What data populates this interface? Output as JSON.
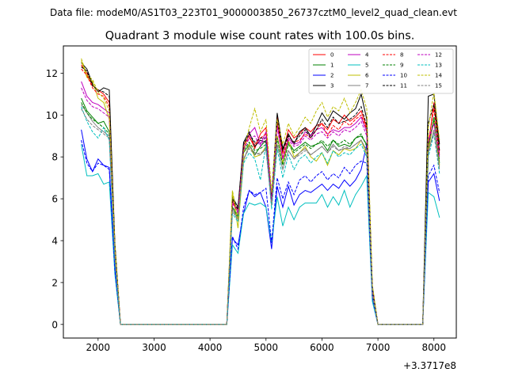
{
  "figure": {
    "suptitle": "Data file: modeM0/AS1T03_223T01_9000003850_26737cztM0_level2_quad_clean.evt",
    "offset_label": "+3.3717e8"
  },
  "chart_data": {
    "type": "line",
    "title": "Quadrant 3 module wise count rates with 100.0s bins.",
    "xlabel": "",
    "ylabel": "",
    "x_offset": 337170000,
    "xlim": [
      1380,
      8400
    ],
    "ylim": [
      -0.65,
      13.3
    ],
    "xticks": [
      2000,
      3000,
      4000,
      5000,
      6000,
      7000,
      8000
    ],
    "xtick_labels": [
      "2000",
      "3000",
      "4000",
      "5000",
      "6000",
      "7000",
      "8000"
    ],
    "yticks": [
      0,
      2,
      4,
      6,
      8,
      10,
      12
    ],
    "ytick_labels": [
      "0",
      "2",
      "4",
      "6",
      "8",
      "10",
      "12"
    ],
    "grid": false,
    "legend_position": "top-right",
    "legend_columns": 4,
    "x": [
      1700,
      1800,
      1900,
      2000,
      2100,
      2200,
      2300,
      2400,
      2500,
      2600,
      2700,
      2800,
      2900,
      3000,
      3100,
      3200,
      3300,
      3400,
      3500,
      3600,
      3700,
      3800,
      3900,
      4000,
      4100,
      4200,
      4300,
      4400,
      4500,
      4600,
      4700,
      4800,
      4900,
      5000,
      5100,
      5200,
      5300,
      5400,
      5500,
      5600,
      5700,
      5800,
      5900,
      6000,
      6100,
      6200,
      6300,
      6400,
      6500,
      6600,
      6700,
      6800,
      6900,
      7000,
      7100,
      7200,
      7300,
      7400,
      7500,
      7600,
      7700,
      7800,
      7900,
      8000,
      8100
    ],
    "series": [
      {
        "name": "0",
        "color": "#ff0000",
        "dash": "solid",
        "values": [
          12.4,
          12.0,
          11.4,
          11.2,
          11.0,
          10.6,
          3.8,
          0,
          0,
          0,
          0,
          0,
          0,
          0,
          0,
          0,
          0,
          0,
          0,
          0,
          0,
          0,
          0,
          0,
          0,
          0,
          0,
          5.8,
          5.5,
          8.6,
          9.0,
          8.4,
          9.1,
          9.4,
          6.0,
          9.9,
          8.2,
          9.3,
          8.9,
          9.1,
          9.4,
          9.2,
          9.5,
          9.6,
          9.3,
          9.8,
          9.6,
          10.0,
          9.7,
          9.9,
          10.2,
          9.4,
          1.7,
          0,
          0,
          0,
          0,
          0,
          0,
          0,
          0,
          0,
          8.5,
          10.6,
          8.3
        ]
      },
      {
        "name": "1",
        "color": "#008000",
        "dash": "solid",
        "values": [
          10.8,
          10.2,
          9.9,
          9.6,
          9.7,
          9.2,
          3.4,
          0,
          0,
          0,
          0,
          0,
          0,
          0,
          0,
          0,
          0,
          0,
          0,
          0,
          0,
          0,
          0,
          0,
          0,
          0,
          0,
          5.6,
          5.2,
          8.2,
          8.6,
          8.1,
          8.5,
          8.8,
          6.0,
          9.0,
          7.7,
          8.7,
          8.3,
          8.5,
          8.7,
          8.5,
          8.6,
          8.7,
          8.3,
          8.8,
          8.5,
          8.6,
          8.5,
          8.9,
          9.0,
          8.6,
          1.5,
          0,
          0,
          0,
          0,
          0,
          0,
          0,
          0,
          0,
          8.4,
          9.9,
          7.7
        ]
      },
      {
        "name": "2",
        "color": "#0000ff",
        "dash": "solid",
        "values": [
          9.3,
          7.9,
          7.3,
          7.9,
          7.6,
          7.5,
          2.7,
          0,
          0,
          0,
          0,
          0,
          0,
          0,
          0,
          0,
          0,
          0,
          0,
          0,
          0,
          0,
          0,
          0,
          0,
          0,
          0,
          4.1,
          3.8,
          5.3,
          6.4,
          6.1,
          6.3,
          5.6,
          3.6,
          6.6,
          5.6,
          6.6,
          5.7,
          6.2,
          6.4,
          6.3,
          6.5,
          6.7,
          6.4,
          6.7,
          6.5,
          6.9,
          6.6,
          6.9,
          7.4,
          8.6,
          1.3,
          0,
          0,
          0,
          0,
          0,
          0,
          0,
          0,
          0,
          6.8,
          7.2,
          5.9
        ]
      },
      {
        "name": "3",
        "color": "#000000",
        "dash": "solid",
        "values": [
          12.5,
          12.2,
          11.5,
          11.1,
          11.3,
          11.2,
          3.9,
          0,
          0,
          0,
          0,
          0,
          0,
          0,
          0,
          0,
          0,
          0,
          0,
          0,
          0,
          0,
          0,
          0,
          0,
          0,
          0,
          6.1,
          5.6,
          8.7,
          9.2,
          8.5,
          8.8,
          8.7,
          6.1,
          10.1,
          8.4,
          9.1,
          8.6,
          9.2,
          9.4,
          9.0,
          9.5,
          10.1,
          9.7,
          10.2,
          10.0,
          9.8,
          10.1,
          10.3,
          11.0,
          9.8,
          1.8,
          0,
          0,
          0,
          0,
          0,
          0,
          0,
          0,
          0,
          10.9,
          11.0,
          8.6
        ]
      },
      {
        "name": "4",
        "color": "#bf00bf",
        "dash": "solid",
        "values": [
          11.6,
          10.9,
          10.6,
          10.5,
          10.3,
          10.1,
          3.6,
          0,
          0,
          0,
          0,
          0,
          0,
          0,
          0,
          0,
          0,
          0,
          0,
          0,
          0,
          0,
          0,
          0,
          0,
          0,
          0,
          5.9,
          5.4,
          8.4,
          9.1,
          9.4,
          8.6,
          9.2,
          5.9,
          9.6,
          7.9,
          8.9,
          8.6,
          8.7,
          9.2,
          9.0,
          9.3,
          9.4,
          9.1,
          9.3,
          9.2,
          9.4,
          9.4,
          9.6,
          9.9,
          9.2,
          1.6,
          0,
          0,
          0,
          0,
          0,
          0,
          0,
          0,
          0,
          8.8,
          9.6,
          8.1
        ]
      },
      {
        "name": "5",
        "color": "#00bfbf",
        "dash": "solid",
        "values": [
          8.6,
          7.1,
          7.1,
          7.2,
          6.7,
          6.8,
          2.4,
          0,
          0,
          0,
          0,
          0,
          0,
          0,
          0,
          0,
          0,
          0,
          0,
          0,
          0,
          0,
          0,
          0,
          0,
          0,
          0,
          3.8,
          3.4,
          5.3,
          5.8,
          5.7,
          5.8,
          5.6,
          3.9,
          6.1,
          4.7,
          5.6,
          5.0,
          5.6,
          5.8,
          5.8,
          5.8,
          6.2,
          5.6,
          6.1,
          5.7,
          6.4,
          5.6,
          6.2,
          6.6,
          7.1,
          1.1,
          0,
          0,
          0,
          0,
          0,
          0,
          0,
          0,
          0,
          6.3,
          6.1,
          5.1
        ]
      },
      {
        "name": "6",
        "color": "#bfbf00",
        "dash": "solid",
        "values": [
          12.6,
          11.8,
          11.6,
          10.8,
          10.6,
          9.8,
          3.7,
          0,
          0,
          0,
          0,
          0,
          0,
          0,
          0,
          0,
          0,
          0,
          0,
          0,
          0,
          0,
          0,
          0,
          0,
          0,
          0,
          6.3,
          4.6,
          7.8,
          8.6,
          8.0,
          8.1,
          8.5,
          5.8,
          9.0,
          7.7,
          8.8,
          8.0,
          8.2,
          8.5,
          8.0,
          7.8,
          8.2,
          7.6,
          8.3,
          8.1,
          8.4,
          8.3,
          8.4,
          8.8,
          8.1,
          1.5,
          0,
          0,
          0,
          0,
          0,
          0,
          0,
          0,
          0,
          8.3,
          9.8,
          7.6
        ]
      },
      {
        "name": "7",
        "color": "#808080",
        "dash": "solid",
        "values": [
          10.5,
          10.1,
          9.7,
          9.4,
          9.2,
          9.0,
          3.2,
          0,
          0,
          0,
          0,
          0,
          0,
          0,
          0,
          0,
          0,
          0,
          0,
          0,
          0,
          0,
          0,
          0,
          0,
          0,
          0,
          5.5,
          5.0,
          7.9,
          8.5,
          8.2,
          8.1,
          8.4,
          5.7,
          8.6,
          7.4,
          8.3,
          7.9,
          8.2,
          8.4,
          8.1,
          8.3,
          8.5,
          8.2,
          8.6,
          8.3,
          8.4,
          8.4,
          8.6,
          8.8,
          8.3,
          1.4,
          0,
          0,
          0,
          0,
          0,
          0,
          0,
          0,
          0,
          8.2,
          9.3,
          7.5
        ]
      },
      {
        "name": "8",
        "color": "#ff0000",
        "dash": "dashed",
        "values": [
          12.2,
          11.9,
          11.3,
          11.0,
          10.9,
          10.4,
          3.7,
          0,
          0,
          0,
          0,
          0,
          0,
          0,
          0,
          0,
          0,
          0,
          0,
          0,
          0,
          0,
          0,
          0,
          0,
          0,
          0,
          5.9,
          5.3,
          8.5,
          8.9,
          8.6,
          8.9,
          9.1,
          5.9,
          9.7,
          8.0,
          9.0,
          8.7,
          8.8,
          9.1,
          8.9,
          9.3,
          9.6,
          9.0,
          9.5,
          9.3,
          9.7,
          9.5,
          9.8,
          10.0,
          9.3,
          1.7,
          0,
          0,
          0,
          0,
          0,
          0,
          0,
          0,
          0,
          8.7,
          10.3,
          8.1
        ]
      },
      {
        "name": "9",
        "color": "#008000",
        "dash": "dashed",
        "values": [
          10.6,
          10.1,
          9.8,
          9.6,
          9.4,
          9.1,
          3.3,
          0,
          0,
          0,
          0,
          0,
          0,
          0,
          0,
          0,
          0,
          0,
          0,
          0,
          0,
          0,
          0,
          0,
          0,
          0,
          0,
          5.6,
          5.1,
          8.3,
          8.7,
          8.3,
          8.4,
          8.6,
          5.8,
          8.9,
          7.6,
          8.6,
          8.2,
          8.4,
          8.6,
          8.4,
          8.6,
          8.8,
          8.5,
          8.8,
          8.6,
          8.8,
          8.6,
          8.9,
          9.1,
          8.5,
          1.5,
          0,
          0,
          0,
          0,
          0,
          0,
          0,
          0,
          0,
          8.5,
          9.8,
          7.8
        ]
      },
      {
        "name": "10",
        "color": "#0000ff",
        "dash": "dashed",
        "values": [
          8.8,
          7.7,
          7.3,
          7.7,
          7.6,
          7.4,
          2.6,
          0,
          0,
          0,
          0,
          0,
          0,
          0,
          0,
          0,
          0,
          0,
          0,
          0,
          0,
          0,
          0,
          0,
          0,
          0,
          0,
          4.2,
          3.6,
          5.6,
          6.4,
          6.2,
          6.3,
          6.5,
          3.9,
          7.0,
          6.0,
          6.8,
          6.2,
          6.9,
          7.1,
          6.8,
          7.1,
          7.3,
          6.9,
          7.2,
          7.0,
          7.5,
          7.2,
          7.6,
          7.8,
          7.7,
          1.3,
          0,
          0,
          0,
          0,
          0,
          0,
          0,
          0,
          0,
          7.1,
          7.6,
          6.3
        ]
      },
      {
        "name": "11",
        "color": "#000000",
        "dash": "dashed",
        "values": [
          12.3,
          12.1,
          11.4,
          11.2,
          11.1,
          10.9,
          3.8,
          0,
          0,
          0,
          0,
          0,
          0,
          0,
          0,
          0,
          0,
          0,
          0,
          0,
          0,
          0,
          0,
          0,
          0,
          0,
          0,
          6.0,
          5.5,
          8.6,
          9.1,
          8.7,
          8.9,
          8.9,
          6.0,
          9.8,
          8.3,
          9.0,
          8.7,
          9.0,
          9.3,
          8.9,
          9.3,
          9.8,
          9.4,
          9.9,
          9.6,
          9.7,
          9.8,
          10.0,
          10.4,
          9.5,
          1.8,
          0,
          0,
          0,
          0,
          0,
          0,
          0,
          0,
          0,
          9.6,
          10.5,
          8.3
        ]
      },
      {
        "name": "12",
        "color": "#bf00bf",
        "dash": "dashed",
        "values": [
          11.3,
          10.7,
          10.4,
          10.3,
          10.1,
          9.9,
          3.5,
          0,
          0,
          0,
          0,
          0,
          0,
          0,
          0,
          0,
          0,
          0,
          0,
          0,
          0,
          0,
          0,
          0,
          0,
          0,
          0,
          5.8,
          5.3,
          8.3,
          8.9,
          9.0,
          8.5,
          9.0,
          5.9,
          9.4,
          7.9,
          8.8,
          8.5,
          8.6,
          9.0,
          8.8,
          9.1,
          9.2,
          8.9,
          9.2,
          9.0,
          9.3,
          9.2,
          9.4,
          9.7,
          9.0,
          1.6,
          0,
          0,
          0,
          0,
          0,
          0,
          0,
          0,
          0,
          8.7,
          9.6,
          8.0
        ]
      },
      {
        "name": "13",
        "color": "#00bfbf",
        "dash": "dashed",
        "values": [
          10.4,
          9.7,
          9.2,
          8.9,
          9.4,
          8.8,
          3.1,
          0,
          0,
          0,
          0,
          0,
          0,
          0,
          0,
          0,
          0,
          0,
          0,
          0,
          0,
          0,
          0,
          0,
          0,
          0,
          0,
          5.3,
          4.9,
          7.7,
          8.2,
          7.9,
          6.9,
          8.6,
          5.5,
          8.4,
          7.0,
          8.1,
          7.4,
          7.9,
          8.1,
          7.7,
          8.0,
          8.2,
          7.7,
          8.3,
          8.0,
          8.2,
          8.1,
          8.4,
          8.6,
          8.0,
          1.4,
          0,
          0,
          0,
          0,
          0,
          0,
          0,
          0,
          0,
          8.0,
          9.1,
          7.2
        ]
      },
      {
        "name": "14",
        "color": "#bfbf00",
        "dash": "dashed",
        "values": [
          12.7,
          11.9,
          11.7,
          11.1,
          10.8,
          10.2,
          3.8,
          0,
          0,
          0,
          0,
          0,
          0,
          0,
          0,
          0,
          0,
          0,
          0,
          0,
          0,
          0,
          0,
          0,
          0,
          0,
          0,
          6.4,
          5.0,
          8.2,
          9.4,
          10.3,
          9.2,
          9.8,
          6.3,
          9.8,
          8.6,
          9.6,
          9.0,
          9.4,
          9.9,
          9.6,
          10.2,
          10.6,
          9.9,
          10.4,
          10.2,
          10.8,
          10.1,
          10.6,
          11.2,
          10.3,
          1.9,
          0,
          0,
          0,
          0,
          0,
          0,
          0,
          0,
          0,
          9.4,
          11.1,
          8.8
        ]
      },
      {
        "name": "15",
        "color": "#808080",
        "dash": "dashed",
        "values": [
          10.3,
          9.8,
          9.5,
          9.3,
          9.1,
          8.9,
          3.2,
          0,
          0,
          0,
          0,
          0,
          0,
          0,
          0,
          0,
          0,
          0,
          0,
          0,
          0,
          0,
          0,
          0,
          0,
          0,
          0,
          5.4,
          5.0,
          7.9,
          8.4,
          8.1,
          8.2,
          8.3,
          5.7,
          8.6,
          7.4,
          8.3,
          7.9,
          8.1,
          8.3,
          8.1,
          8.3,
          8.5,
          8.2,
          8.5,
          8.3,
          8.5,
          8.4,
          8.6,
          8.8,
          8.3,
          1.4,
          0,
          0,
          0,
          0,
          0,
          0,
          0,
          0,
          0,
          8.2,
          9.2,
          7.4
        ]
      }
    ]
  }
}
